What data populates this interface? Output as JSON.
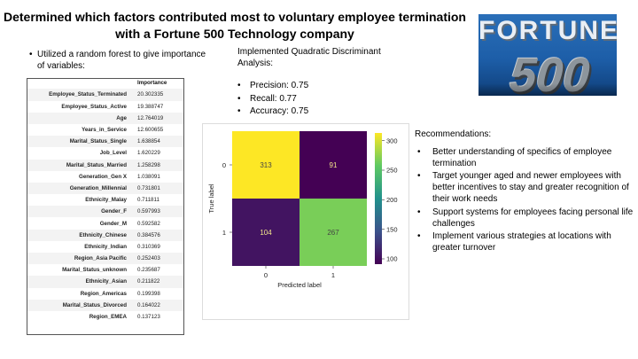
{
  "slide": {
    "title_line1": "Determined which factors contributed most to voluntary employee termination",
    "title_line2": "with a Fortune 500 Technology company",
    "logo": {
      "word": "FORTUNE",
      "number": "500",
      "colors": {
        "background": "#1d5ea8",
        "letters": "#e9eef4",
        "numerals": "#8d959c"
      }
    }
  },
  "left_panel": {
    "bullet": "Utilized a random forest to give importance of variables:",
    "table_header": "Importance",
    "rows": [
      {
        "name": "Employee_Status_Terminated",
        "value": "20.302335"
      },
      {
        "name": "Employee_Status_Active",
        "value": "19.388747"
      },
      {
        "name": "Age",
        "value": "12.764019"
      },
      {
        "name": "Years_in_Service",
        "value": "12.600655"
      },
      {
        "name": "Marital_Status_Single",
        "value": "1.638854"
      },
      {
        "name": "Job_Level",
        "value": "1.620229"
      },
      {
        "name": "Marital_Status_Married",
        "value": "1.258298"
      },
      {
        "name": "Generation_Gen X",
        "value": "1.038091"
      },
      {
        "name": "Generation_Millennial",
        "value": "0.731801"
      },
      {
        "name": "Ethnicity_Malay",
        "value": "0.711811"
      },
      {
        "name": "Gender_F",
        "value": "0.597993"
      },
      {
        "name": "Gender_M",
        "value": "0.592582"
      },
      {
        "name": "Ethnicity_Chinese",
        "value": "0.384576"
      },
      {
        "name": "Ethnicity_Indian",
        "value": "0.310369"
      },
      {
        "name": "Region_Asia Pacific",
        "value": "0.252403"
      },
      {
        "name": "Marital_Status_unknown",
        "value": "0.235687"
      },
      {
        "name": "Ethnicity_Asian",
        "value": "0.211822"
      },
      {
        "name": "Region_Americas",
        "value": "0.199398"
      },
      {
        "name": "Marital_Status_Divorced",
        "value": "0.164022"
      },
      {
        "name": "Region_EMEA",
        "value": "0.137123"
      }
    ]
  },
  "middle_panel": {
    "heading": "Implemented Quadratic Discriminant Analysis:",
    "metrics": [
      "Precision: 0.75",
      "Recall: 0.77",
      "Accuracy: 0.75"
    ]
  },
  "recommendations": {
    "heading": "Recommendations:",
    "items": [
      "Better understanding of specifics of employee termination",
      "Target younger aged and newer employees with better incentives to stay and greater recognition of their work needs",
      "Support systems for employees facing personal life challenges",
      "Implement various strategies at locations with greater turnover"
    ]
  },
  "chart_data": {
    "type": "heatmap",
    "title": "",
    "xlabel": "Predicted label",
    "ylabel": "True label",
    "x_categories": [
      "0",
      "1"
    ],
    "y_categories": [
      "0",
      "1"
    ],
    "values": [
      [
        313,
        91
      ],
      [
        104,
        267
      ]
    ],
    "colorbar": {
      "ticks": [
        100,
        150,
        200,
        250,
        300
      ],
      "range": [
        91,
        313
      ]
    },
    "colormap": "viridis",
    "colors": {
      "low": "#440154",
      "mid": "#21918c",
      "high": "#fde725"
    }
  }
}
